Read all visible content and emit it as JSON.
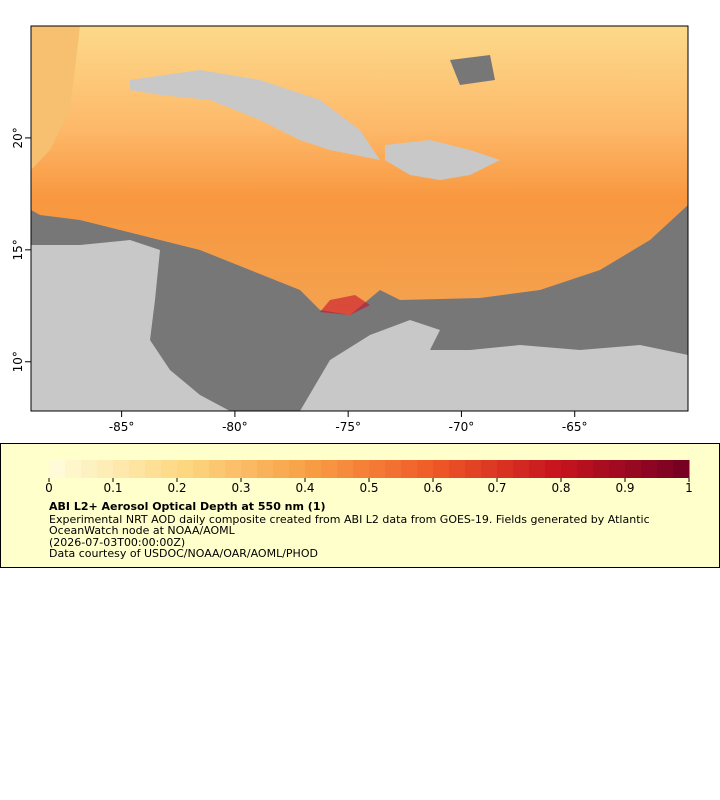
{
  "map": {
    "xlim": [
      -89,
      -60
    ],
    "ylim": [
      7.8,
      25
    ],
    "xticks": [
      {
        "value": -85,
        "label": "-85°"
      },
      {
        "value": -80,
        "label": "-80°"
      },
      {
        "value": -75,
        "label": "-75°"
      },
      {
        "value": -70,
        "label": "-70°"
      },
      {
        "value": -65,
        "label": "-65°"
      }
    ],
    "yticks": [
      {
        "value": 10,
        "label": "10°"
      },
      {
        "value": 15,
        "label": "15°"
      },
      {
        "value": 20,
        "label": "20°"
      }
    ]
  },
  "legend": {
    "range": [
      0,
      1
    ],
    "ticks": [
      0,
      0.1,
      0.2,
      0.3,
      0.4,
      0.5,
      0.6,
      0.7,
      0.8,
      0.9,
      1
    ],
    "title": "ABI L2+ Aerosol Optical Depth at 550 nm (1)",
    "lines": [
      "Experimental NRT AOD daily composite created from ABI L2 data from GOES-19. Fields generated by Atlantic",
      "OceanWatch node at NOAA/AOML",
      "(2026-07-03T00:00:00Z)",
      "Data courtesy of USDOC/NOAA/OAR/AOML/PHOD"
    ]
  }
}
